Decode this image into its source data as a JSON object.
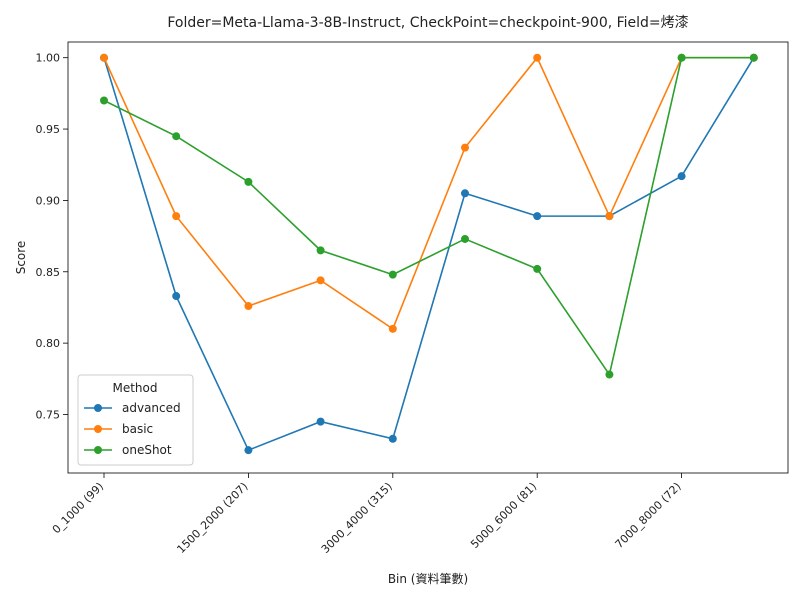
{
  "chart_data": {
    "type": "line",
    "title": "Folder=Meta-Llama-3-8B-Instruct, CheckPoint=checkpoint-900, Field=烤漆",
    "xlabel": "Bin (資料筆數)",
    "ylabel": "Score",
    "x_categories_count": 10,
    "x_tick_labels": [
      {
        "index": 0,
        "label": "0_1000 (99)"
      },
      {
        "index": 2,
        "label": "1500_2000 (207)"
      },
      {
        "index": 4,
        "label": "3000_4000 (315)"
      },
      {
        "index": 6,
        "label": "5000_6000 (81)"
      },
      {
        "index": 8,
        "label": "7000_8000 (72)"
      }
    ],
    "yticks": [
      "0.75",
      "0.80",
      "0.85",
      "0.90",
      "0.95",
      "1.00"
    ],
    "ylim": [
      0.709,
      1.011
    ],
    "legend_title": "Method",
    "legend_position": "lower-left",
    "grid": false,
    "series": [
      {
        "name": "advanced",
        "color": "#1f77b4",
        "values": [
          1.0,
          0.833,
          0.725,
          0.745,
          0.733,
          0.905,
          0.889,
          0.889,
          0.917,
          1.0
        ]
      },
      {
        "name": "basic",
        "color": "#ff7f0e",
        "values": [
          1.0,
          0.889,
          0.826,
          0.844,
          0.81,
          0.937,
          1.0,
          0.889,
          1.0,
          1.0
        ]
      },
      {
        "name": "oneShot",
        "color": "#2ca02c",
        "values": [
          0.97,
          0.945,
          0.913,
          0.865,
          0.848,
          0.873,
          0.852,
          0.778,
          1.0,
          1.0
        ]
      }
    ]
  }
}
